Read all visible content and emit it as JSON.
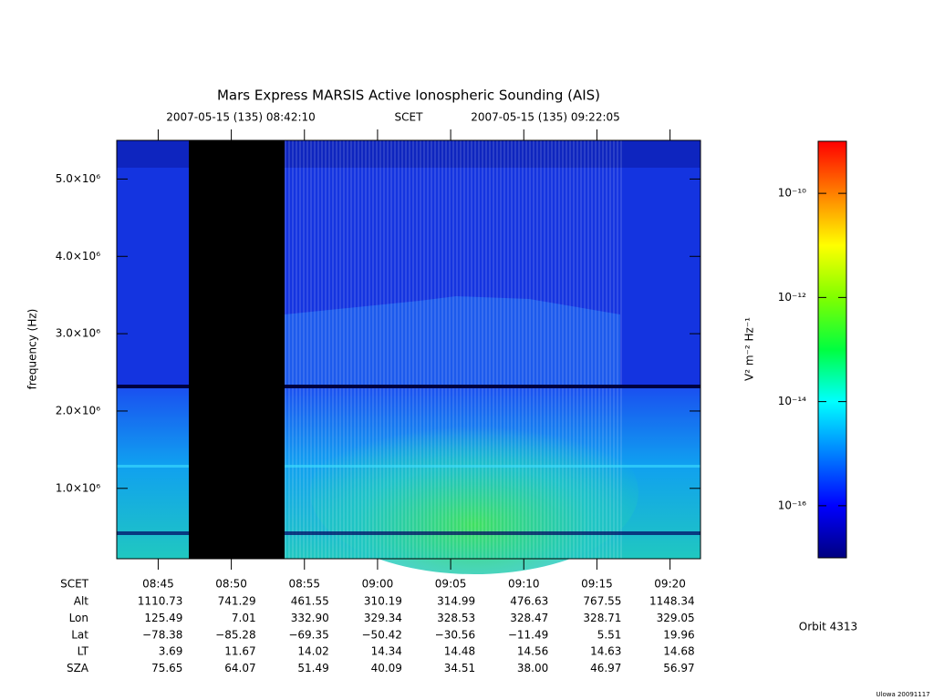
{
  "chart_data": {
    "type": "spectrogram",
    "title": "Mars Express MARSIS Active Ionospheric Sounding (AIS)",
    "time_range": {
      "start": "2007-05-15 (135) 08:42:10",
      "frame": "SCET",
      "end": "2007-05-15 (135) 09:22:05"
    },
    "ylabel": "frequency (Hz)",
    "ylim": [
      90000,
      5500000
    ],
    "yticks": [
      {
        "value": 1000000,
        "label": "1.0×10⁶"
      },
      {
        "value": 2000000,
        "label": "2.0×10⁶"
      },
      {
        "value": 3000000,
        "label": "3.0×10⁶"
      },
      {
        "value": 4000000,
        "label": "4.0×10⁶"
      },
      {
        "value": 5000000,
        "label": "5.0×10⁶"
      }
    ],
    "xlabel": "SCET",
    "xlim": [
      "08:42:10",
      "09:22:05"
    ],
    "xticks": [
      "08:45",
      "08:50",
      "08:55",
      "09:00",
      "09:05",
      "09:10",
      "09:15",
      "09:20"
    ],
    "ephemeris": [
      {
        "name": "Alt",
        "values": [
          1110.73,
          741.29,
          461.55,
          310.19,
          314.99,
          476.63,
          767.55,
          1148.34
        ]
      },
      {
        "name": "Lon",
        "values": [
          125.49,
          7.01,
          332.9,
          329.34,
          328.53,
          328.47,
          328.71,
          329.05
        ],
        "value_labels": [
          "125.49",
          "7.01",
          "332.90",
          "329.34",
          "328.53",
          "328.47",
          "328.71",
          "329.05"
        ]
      },
      {
        "name": "Lat",
        "values": [
          -78.38,
          -85.28,
          -69.35,
          -50.42,
          -30.56,
          -11.49,
          5.51,
          19.96
        ],
        "value_labels": [
          "−78.38",
          "−85.28",
          "−69.35",
          "−50.42",
          "−30.56",
          "−11.49",
          "5.51",
          "19.96"
        ]
      },
      {
        "name": "LT",
        "values": [
          3.69,
          11.67,
          14.02,
          14.34,
          14.48,
          14.56,
          14.63,
          14.68
        ]
      },
      {
        "name": "SZA",
        "values": [
          75.65,
          64.07,
          51.49,
          40.09,
          34.51,
          38,
          46.97,
          56.97
        ],
        "value_labels": [
          "75.65",
          "64.07",
          "51.49",
          "40.09",
          "34.51",
          "38.00",
          "46.97",
          "56.97"
        ]
      }
    ],
    "colorbar": {
      "label": "V² m⁻² Hz⁻¹",
      "scale": "log",
      "lim": [
        1e-17,
        1e-09
      ],
      "ticks": [
        {
          "value": 1e-16,
          "label": "10⁻¹⁶"
        },
        {
          "value": 1e-14,
          "label": "10⁻¹⁴"
        },
        {
          "value": 1e-12,
          "label": "10⁻¹²"
        },
        {
          "value": 1e-10,
          "label": "10⁻¹⁰"
        }
      ],
      "colors": [
        "#000080",
        "#0000ff",
        "#0080ff",
        "#00ffff",
        "#00ff40",
        "#80ff00",
        "#ffff00",
        "#ff8000",
        "#ff0000"
      ]
    },
    "annotations": [
      "Orbit 4313",
      "Ulowa 20091117"
    ]
  }
}
